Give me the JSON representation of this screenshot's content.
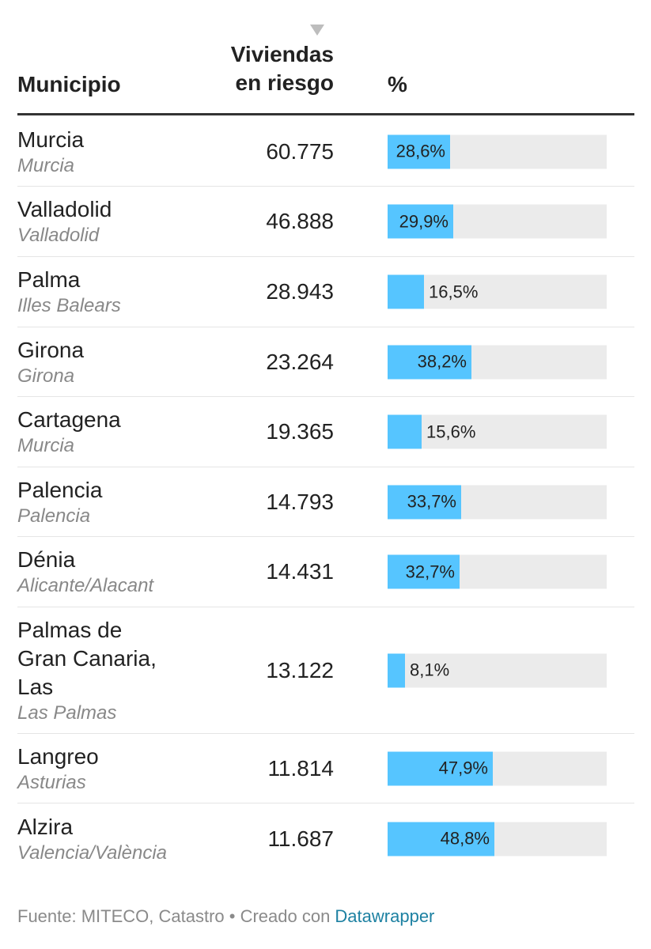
{
  "header": {
    "col_municipio": "Municipio",
    "col_viviendas_line1": "Viviendas",
    "col_viviendas_line2": "en riesgo",
    "col_pct": "%"
  },
  "rows": [
    {
      "name": "Murcia",
      "region": "Murcia",
      "value": "60.775",
      "pct_label": "28,6%"
    },
    {
      "name": "Valladolid",
      "region": "Valladolid",
      "value": "46.888",
      "pct_label": "29,9%"
    },
    {
      "name": "Palma",
      "region": "Illes Balears",
      "value": "28.943",
      "pct_label": "16,5%"
    },
    {
      "name": "Girona",
      "region": "Girona",
      "value": "23.264",
      "pct_label": "38,2%"
    },
    {
      "name": "Cartagena",
      "region": "Murcia",
      "value": "19.365",
      "pct_label": "15,6%"
    },
    {
      "name": "Palencia",
      "region": "Palencia",
      "value": "14.793",
      "pct_label": "33,7%"
    },
    {
      "name": "Dénia",
      "region": "Alicante/Alacant",
      "value": "14.431",
      "pct_label": "32,7%"
    },
    {
      "name": "Palmas de Gran Canaria, Las",
      "region": "Las Palmas",
      "value": "13.122",
      "pct_label": "8,1%"
    },
    {
      "name": "Langreo",
      "region": "Asturias",
      "value": "11.814",
      "pct_label": "47,9%"
    },
    {
      "name": "Alzira",
      "region": "Valencia/València",
      "value": "11.687",
      "pct_label": "48,8%"
    }
  ],
  "footer": {
    "source": "Fuente: MITECO, Catastro • Creado con ",
    "link": "Datawrapper"
  },
  "colors": {
    "bar": "#56c5ff",
    "track": "#ebebeb",
    "link": "#1d81a2"
  },
  "chart_data": {
    "type": "table",
    "columns": [
      "Municipio",
      "Viviendas en riesgo",
      "%"
    ],
    "sorted_by": "Viviendas en riesgo",
    "sort_direction": "descending",
    "categories": [
      "Murcia",
      "Valladolid",
      "Palma",
      "Girona",
      "Cartagena",
      "Palencia",
      "Dénia",
      "Palmas de Gran Canaria, Las",
      "Langreo",
      "Alzira"
    ],
    "regions": [
      "Murcia",
      "Valladolid",
      "Illes Balears",
      "Girona",
      "Murcia",
      "Palencia",
      "Alicante/Alacant",
      "Las Palmas",
      "Asturias",
      "Valencia/València"
    ],
    "series": [
      {
        "name": "Viviendas en riesgo",
        "values": [
          60775,
          46888,
          28943,
          23264,
          19365,
          14793,
          14431,
          13122,
          11814,
          11687
        ]
      },
      {
        "name": "%",
        "values": [
          28.6,
          29.9,
          16.5,
          38.2,
          15.6,
          33.7,
          32.7,
          8.1,
          47.9,
          48.8
        ]
      }
    ],
    "pct_range": [
      0,
      100
    ]
  }
}
